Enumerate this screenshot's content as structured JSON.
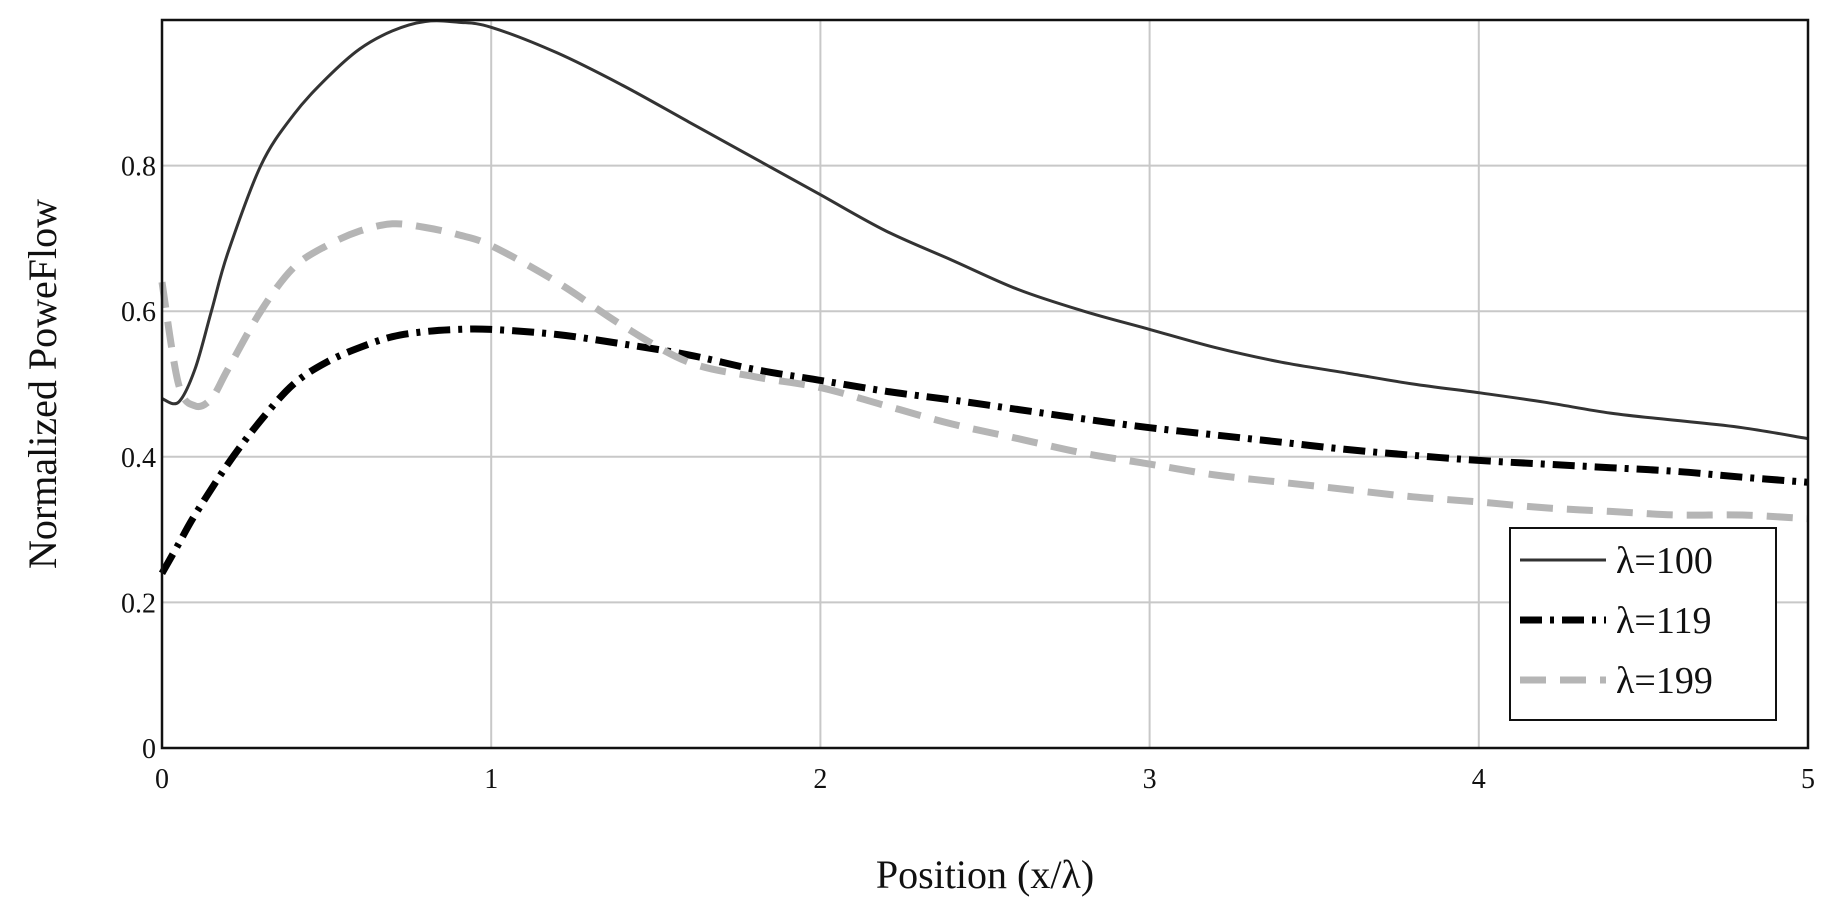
{
  "chart_data": {
    "type": "line",
    "title": "",
    "xlabel": "Position (x/λ)",
    "ylabel": "Normalized PoweFlow",
    "xlim": [
      0,
      5
    ],
    "ylim": [
      0,
      1.0
    ],
    "grid": true,
    "legend_position": "bottom-right",
    "x_ticks": [
      "0",
      "1",
      "2",
      "3",
      "4",
      "5"
    ],
    "y_ticks": [
      "0",
      "0.2",
      "0.4",
      "0.6",
      "0.8"
    ],
    "y_tick_values": [
      0,
      0.2,
      0.4,
      0.6,
      0.8
    ],
    "colors": {
      "grid": "#c8c8c8",
      "axis": "#111111"
    },
    "series": [
      {
        "name": "λ=100",
        "style": "solid",
        "color": "#333333",
        "x": [
          0,
          0.05,
          0.1,
          0.15,
          0.2,
          0.3,
          0.4,
          0.5,
          0.6,
          0.7,
          0.8,
          0.9,
          1.0,
          1.2,
          1.4,
          1.6,
          1.8,
          2.0,
          2.2,
          2.4,
          2.6,
          2.8,
          3.0,
          3.2,
          3.4,
          3.6,
          3.8,
          4.0,
          4.2,
          4.4,
          4.6,
          4.8,
          5.0
        ],
        "y": [
          0.48,
          0.475,
          0.52,
          0.6,
          0.68,
          0.8,
          0.87,
          0.92,
          0.96,
          0.985,
          0.998,
          0.997,
          0.99,
          0.955,
          0.91,
          0.86,
          0.81,
          0.76,
          0.71,
          0.67,
          0.63,
          0.6,
          0.575,
          0.55,
          0.53,
          0.515,
          0.5,
          0.488,
          0.475,
          0.46,
          0.45,
          0.44,
          0.425
        ]
      },
      {
        "name": "λ=119",
        "style": "dashdot",
        "color": "#000000",
        "x": [
          0,
          0.05,
          0.1,
          0.2,
          0.3,
          0.4,
          0.5,
          0.6,
          0.7,
          0.8,
          0.9,
          1.0,
          1.2,
          1.4,
          1.6,
          1.8,
          2.0,
          2.2,
          2.4,
          2.6,
          2.8,
          3.0,
          3.2,
          3.4,
          3.6,
          3.8,
          4.0,
          4.2,
          4.4,
          4.6,
          4.8,
          5.0
        ],
        "y": [
          0.24,
          0.28,
          0.32,
          0.39,
          0.45,
          0.5,
          0.53,
          0.55,
          0.565,
          0.572,
          0.575,
          0.575,
          0.568,
          0.555,
          0.54,
          0.52,
          0.505,
          0.49,
          0.478,
          0.465,
          0.452,
          0.44,
          0.43,
          0.42,
          0.41,
          0.402,
          0.395,
          0.39,
          0.385,
          0.38,
          0.372,
          0.365
        ]
      },
      {
        "name": "λ=199",
        "style": "dashed",
        "color": "#b5b5b5",
        "x": [
          0,
          0.05,
          0.1,
          0.15,
          0.2,
          0.3,
          0.4,
          0.5,
          0.6,
          0.7,
          0.8,
          0.9,
          1.0,
          1.2,
          1.4,
          1.6,
          1.8,
          2.0,
          2.2,
          2.4,
          2.6,
          2.8,
          3.0,
          3.2,
          3.4,
          3.6,
          3.8,
          4.0,
          4.2,
          4.4,
          4.6,
          4.8,
          5.0
        ],
        "y": [
          0.64,
          0.5,
          0.47,
          0.48,
          0.52,
          0.6,
          0.66,
          0.69,
          0.71,
          0.72,
          0.715,
          0.705,
          0.69,
          0.64,
          0.58,
          0.53,
          0.51,
          0.495,
          0.47,
          0.445,
          0.425,
          0.405,
          0.39,
          0.375,
          0.365,
          0.355,
          0.345,
          0.338,
          0.33,
          0.325,
          0.32,
          0.32,
          0.315
        ]
      }
    ]
  }
}
